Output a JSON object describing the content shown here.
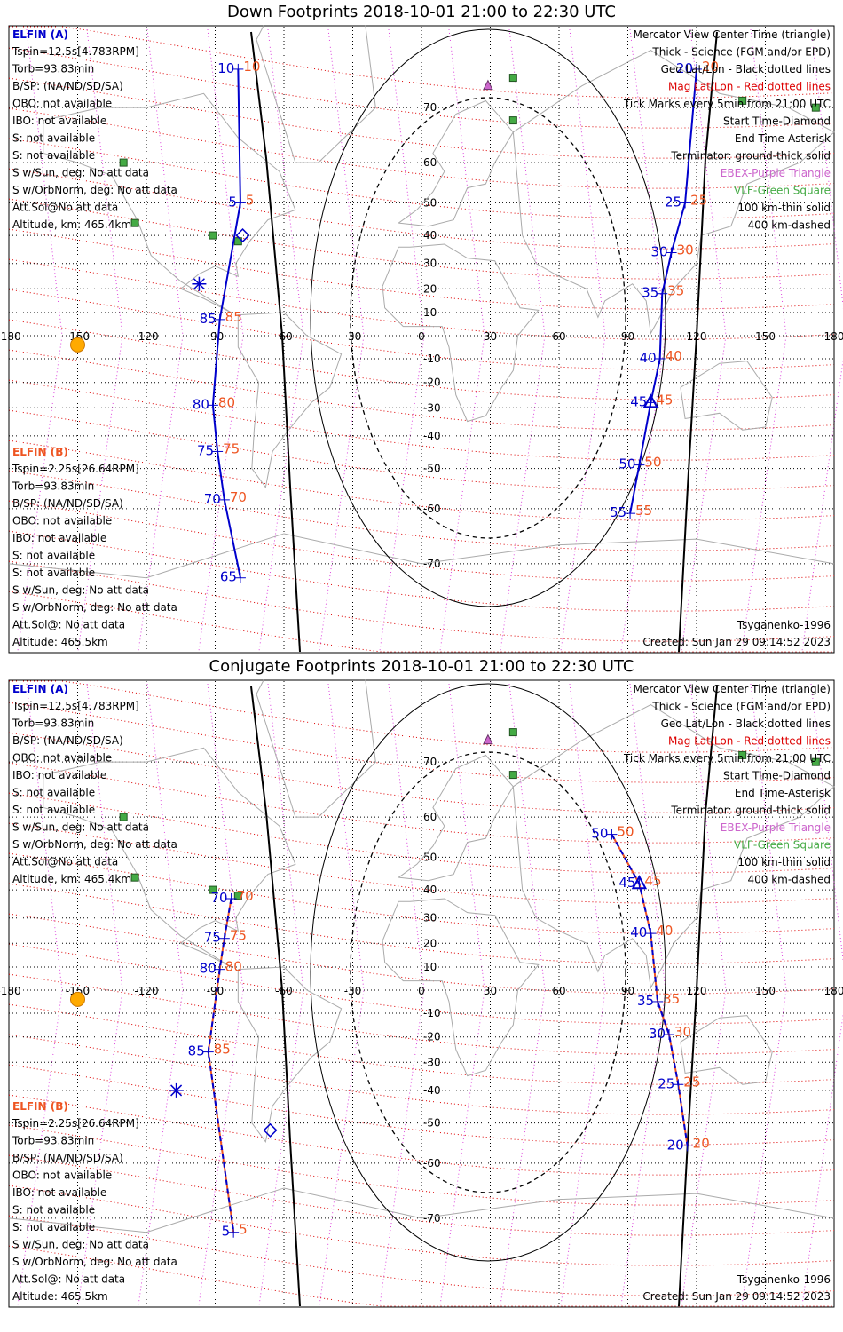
{
  "colors": {
    "elfin_a": "#0000cc",
    "elfin_b": "#ee5522",
    "mag_grid": "#dd0000",
    "lshell": "#dd44dd",
    "coast": "#aaaaaa",
    "vlf": "#44aa44",
    "ebex": "#cc66cc",
    "sun": "#ffaa00",
    "black": "#000000"
  },
  "common": {
    "lat_labels": [
      "70",
      "60",
      "50",
      "40",
      "30",
      "20",
      "10",
      "0",
      "-10",
      "-20",
      "-30",
      "-40",
      "-50",
      "-60",
      "-70"
    ],
    "lon_labels": [
      "-180",
      "-150",
      "-120",
      "-90",
      "-60",
      "-30",
      "0",
      "30",
      "60",
      "90",
      "120",
      "150",
      "180"
    ],
    "elfin_a": {
      "title": "ELFIN (A)",
      "lines": [
        "Tspin=12.5s[4.783RPM]",
        "Torb=93.83min",
        "B/SP: (NA/ND/SD/SA)",
        "OBO: not available",
        "IBO: not available",
        "S: not available",
        "S: not available",
        "S w/Sun, deg: No att data",
        "S w/OrbNorm, deg: No att data",
        "Att.Sol@No att data",
        "Altitude, km: 465.4km"
      ]
    },
    "elfin_b": {
      "title": "ELFIN (B)",
      "lines": [
        "Tspin=2.25s[26.64RPM]",
        "Torb=93.83min",
        "B/SP: (NA/ND/SD/SA)",
        "OBO: not available",
        "IBO: not available",
        "S: not available",
        "S: not available",
        "S w/Sun, deg: No att data",
        "S w/OrbNorm, deg: No att data",
        "Att.Sol@: No att data",
        "Altitude: 465.5km"
      ]
    },
    "legend": [
      "Mercator View Center Time (triangle)",
      "Thick - Science (FGM and/or EPD)",
      "Geo Lat/Lon - Black dotted lines",
      "Mag Lat/Lon - Red dotted lines",
      "Tick Marks every 5min from 21:00 UTC",
      "Start Time-Diamond",
      "End Time-Asterisk",
      "Terminator: ground-thick solid",
      "EBEX-Purple Triangle",
      "VLF-Green Square",
      "100 km-thin solid",
      "400 km-dashed"
    ],
    "model": "Tsyganenko-1996",
    "created": "Created: Sun Jan 29 09:14:52 2023"
  },
  "panels": [
    {
      "title": "Down Footprints 2018-10-01 21:00 to 22:30 UTC",
      "a_ticks": [
        {
          "lon": 120,
          "lat": 75,
          "blue": "20",
          "red": "20"
        },
        {
          "lon": 115,
          "lat": 50,
          "blue": "25",
          "red": "25"
        },
        {
          "lon": 109,
          "lat": 34,
          "blue": "30",
          "red": "30"
        },
        {
          "lon": 105,
          "lat": 18,
          "blue": "35",
          "red": "35"
        },
        {
          "lon": 104,
          "lat": -10,
          "blue": "40",
          "red": "40"
        },
        {
          "lon": 100,
          "lat": -28,
          "blue": "45",
          "red": "45"
        },
        {
          "lon": 95,
          "lat": -49,
          "blue": "50",
          "red": "50"
        },
        {
          "lon": 91,
          "lat": -61,
          "blue": "55",
          "red": "55"
        },
        {
          "lon": -80,
          "lat": 75,
          "blue": "10",
          "red": "10"
        },
        {
          "lon": -79,
          "lat": 50,
          "blue": "5",
          "red": "5"
        },
        {
          "lon": -88,
          "lat": 7,
          "blue": "85",
          "red": "85"
        },
        {
          "lon": -91,
          "lat": -29,
          "blue": "80",
          "red": "80"
        },
        {
          "lon": -89,
          "lat": -45,
          "blue": "75",
          "red": "75"
        },
        {
          "lon": -86,
          "lat": -58,
          "blue": "70",
          "red": "70"
        },
        {
          "lon": -79,
          "lat": -72,
          "blue": "65",
          "red": ""
        }
      ]
    },
    {
      "title": "Conjugate Footprints 2018-10-01 21:00 to 22:30 UTC",
      "a_ticks": [
        {
          "lon": 83,
          "lat": 56,
          "blue": "50",
          "red": "50"
        },
        {
          "lon": 95,
          "lat": 42,
          "blue": "45",
          "red": "45"
        },
        {
          "lon": 100,
          "lat": 24,
          "blue": "40",
          "red": "40"
        },
        {
          "lon": 103,
          "lat": -5,
          "blue": "35",
          "red": "35"
        },
        {
          "lon": 108,
          "lat": -19,
          "blue": "30",
          "red": "30"
        },
        {
          "lon": 112,
          "lat": -38,
          "blue": "25",
          "red": "25"
        },
        {
          "lon": 116,
          "lat": -56,
          "blue": "20",
          "red": "20"
        },
        {
          "lon": -83,
          "lat": 37,
          "blue": "70",
          "red": "70"
        },
        {
          "lon": -86,
          "lat": 22,
          "blue": "75",
          "red": "75"
        },
        {
          "lon": -88,
          "lat": 9,
          "blue": "80",
          "red": "80"
        },
        {
          "lon": -93,
          "lat": -26,
          "blue": "85",
          "red": "85"
        },
        {
          "lon": -82,
          "lat": -72,
          "blue": "5",
          "red": "5"
        }
      ]
    }
  ]
}
